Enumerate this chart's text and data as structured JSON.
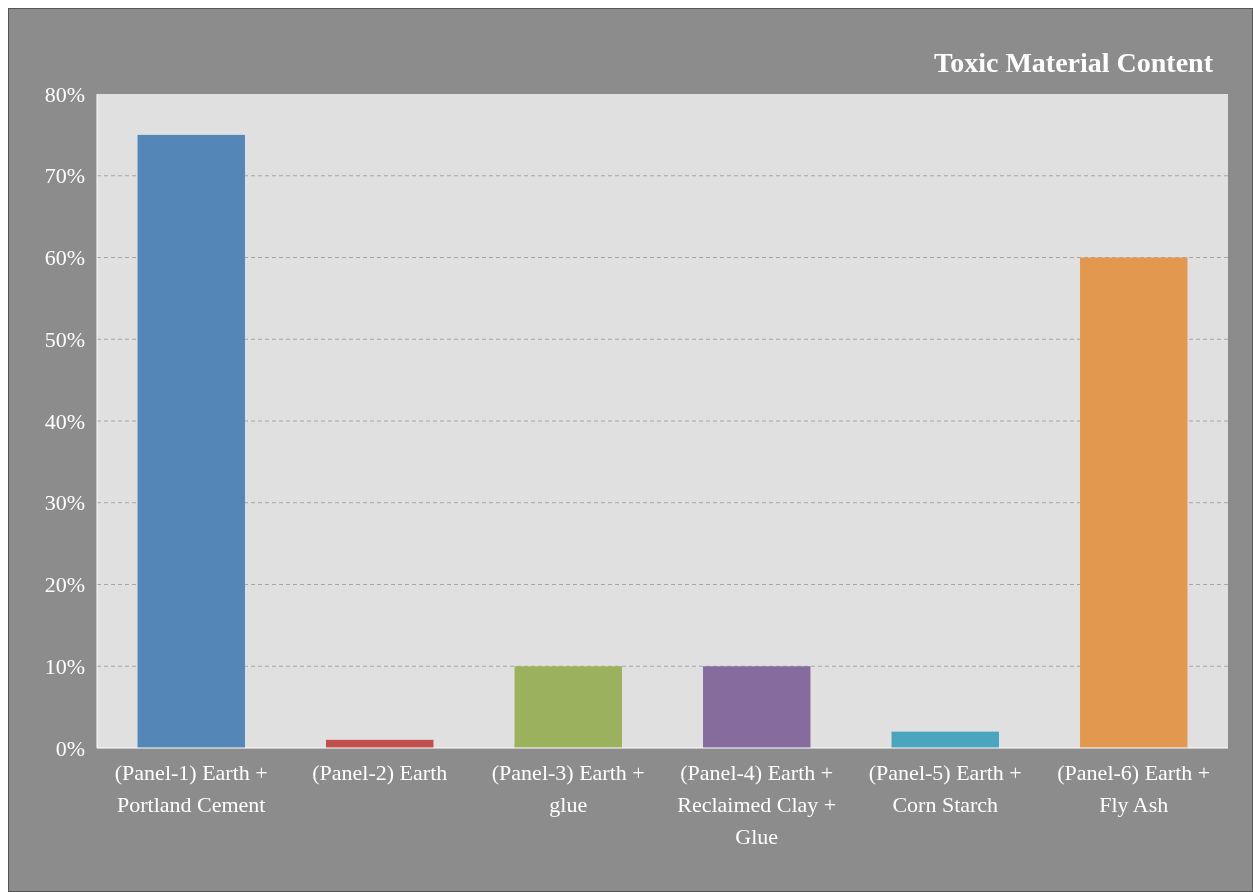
{
  "chart_data": {
    "type": "bar",
    "title": "Toxic Material Content",
    "categories": [
      "(Panel-1) Earth + Portland Cement",
      "(Panel-2) Earth",
      "(Panel-3) Earth + glue",
      "(Panel-4) Earth + Reclaimed Clay + Glue",
      "(Panel-5) Earth + Corn Starch",
      "(Panel-6) Earth + Fly Ash"
    ],
    "values": [
      75,
      1,
      10,
      10,
      2,
      60
    ],
    "colors": [
      "#5586b8",
      "#c0504d",
      "#9bb15d",
      "#866c9e",
      "#4aa5bf",
      "#e3984f"
    ],
    "ylim": [
      0,
      80
    ],
    "yticks": [
      {
        "value": 0,
        "label": "0%"
      },
      {
        "value": 10,
        "label": "10%"
      },
      {
        "value": 20,
        "label": "20%"
      },
      {
        "value": 30,
        "label": "30%"
      },
      {
        "value": 40,
        "label": "40%"
      },
      {
        "value": 50,
        "label": "50%"
      },
      {
        "value": 60,
        "label": "60%"
      },
      {
        "value": 70,
        "label": "70%"
      },
      {
        "value": 80,
        "label": "80%"
      }
    ],
    "grid": "y"
  }
}
